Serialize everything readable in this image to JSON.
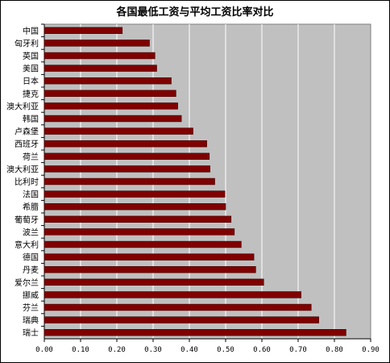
{
  "chart_data": {
    "type": "bar",
    "orientation": "horizontal",
    "title": "各国最低工资与平均工资比率对比",
    "xlabel": "",
    "ylabel": "",
    "xlim": [
      0,
      0.9
    ],
    "x_ticks": [
      "0.00",
      "0.10",
      "0.20",
      "0.30",
      "0.40",
      "0.50",
      "0.60",
      "0.70",
      "0.80",
      "0.90"
    ],
    "grid": "vertical",
    "categories": [
      "中国",
      "匈牙利",
      "英国",
      "美国",
      "日本",
      "捷克",
      "澳大利亚",
      "韩国",
      "卢森堡",
      "西班牙",
      "荷兰",
      "澳大利亚",
      "比利时",
      "法国",
      "希腊",
      "葡萄牙",
      "波兰",
      "意大利",
      "德国",
      "丹麦",
      "爱尔兰",
      "挪威",
      "芬兰",
      "瑞典",
      "瑞士"
    ],
    "values": [
      0.215,
      0.29,
      0.305,
      0.31,
      0.35,
      0.363,
      0.368,
      0.378,
      0.41,
      0.448,
      0.455,
      0.457,
      0.47,
      0.498,
      0.5,
      0.515,
      0.524,
      0.543,
      0.578,
      0.583,
      0.605,
      0.708,
      0.736,
      0.757,
      0.832
    ],
    "colors": {
      "bar": "#800000",
      "bar_edge": "#3a0000",
      "plot_bg": "#c0c0c0",
      "grid": "#ffffff",
      "frame": "#808080"
    }
  }
}
